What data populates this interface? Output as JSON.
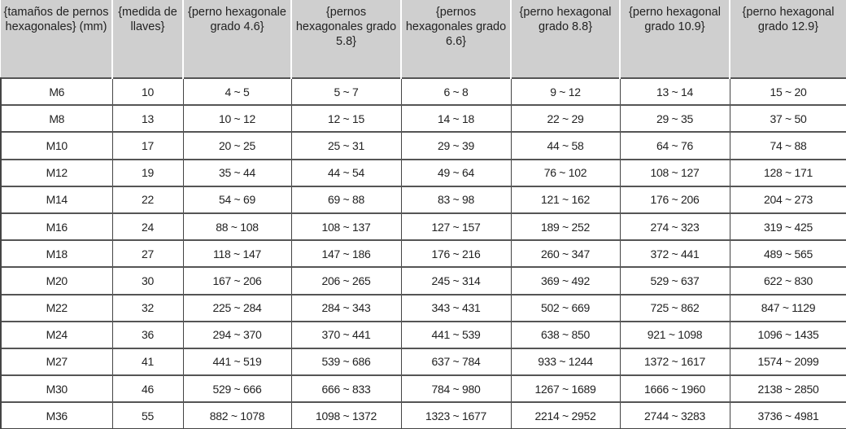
{
  "table": {
    "headers": [
      "{tamaños de pernos hexagonales} (mm)",
      "{medida de llaves}",
      "{perno hexagonale grado 4.6}",
      "{pernos hexagonales grado 5.8}",
      "{pernos hexagonales grado 6.6}",
      "{perno hexagonal grado 8.8}",
      "{perno hexagonal grado 10.9}",
      "{perno hexagonal grado 12.9}"
    ],
    "rows": [
      [
        "M6",
        "10",
        "4 ~ 5",
        "5 ~ 7",
        "6 ~ 8",
        "9 ~ 12",
        "13 ~ 14",
        "15 ~ 20"
      ],
      [
        "M8",
        "13",
        "10 ~ 12",
        "12 ~ 15",
        "14 ~ 18",
        "22 ~ 29",
        "29 ~ 35",
        "37 ~ 50"
      ],
      [
        "M10",
        "17",
        "20 ~ 25",
        "25 ~ 31",
        "29 ~ 39",
        "44 ~ 58",
        "64 ~ 76",
        "74 ~ 88"
      ],
      [
        "M12",
        "19",
        "35 ~ 44",
        "44 ~ 54",
        "49 ~ 64",
        "76 ~ 102",
        "108 ~ 127",
        "128 ~ 171"
      ],
      [
        "M14",
        "22",
        "54 ~ 69",
        "69 ~ 88",
        "83 ~ 98",
        "121 ~ 162",
        "176 ~ 206",
        "204 ~ 273"
      ],
      [
        "M16",
        "24",
        "88 ~ 108",
        "108 ~ 137",
        "127 ~ 157",
        "189 ~ 252",
        "274 ~ 323",
        "319 ~ 425"
      ],
      [
        "M18",
        "27",
        "118 ~ 147",
        "147 ~ 186",
        "176 ~ 216",
        "260 ~ 347",
        "372 ~ 441",
        "489 ~ 565"
      ],
      [
        "M20",
        "30",
        "167 ~ 206",
        "206 ~ 265",
        "245 ~ 314",
        "369 ~ 492",
        "529 ~ 637",
        "622 ~ 830"
      ],
      [
        "M22",
        "32",
        "225 ~ 284",
        "284 ~ 343",
        "343 ~ 431",
        "502 ~ 669",
        "725 ~ 862",
        "847 ~ 1129"
      ],
      [
        "M24",
        "36",
        "294 ~ 370",
        "370 ~ 441",
        "441 ~ 539",
        "638 ~ 850",
        "921 ~ 1098",
        "1096 ~ 1435"
      ],
      [
        "M27",
        "41",
        "441 ~ 519",
        "539 ~ 686",
        "637 ~ 784",
        "933 ~ 1244",
        "1372 ~ 1617",
        "1574 ~ 2099"
      ],
      [
        "M30",
        "46",
        "529 ~ 666",
        "666 ~ 833",
        "784 ~ 980",
        "1267 ~ 1689",
        "1666 ~ 1960",
        "2138 ~ 2850"
      ],
      [
        "M36",
        "55",
        "882 ~ 1078",
        "1098 ~ 1372",
        "1323 ~ 1677",
        "2214 ~ 2952",
        "2744 ~ 3283",
        "3736 ~ 4981"
      ]
    ],
    "header_bg": "#cfcfcf"
  }
}
